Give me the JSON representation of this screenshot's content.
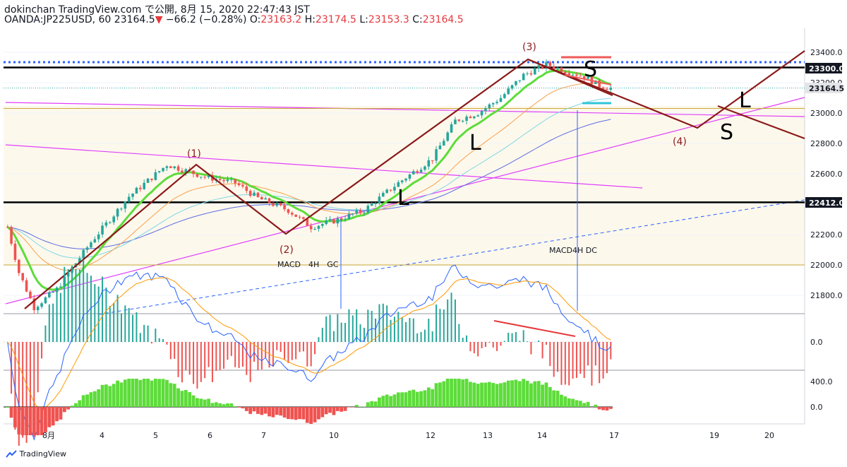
{
  "header": {
    "line1": "dokinchan TradingView.com で公開, 8月 15, 2020 22:47:43 JST",
    "symbol": "OANDA:JP225USD, 60",
    "last": "23164.5",
    "arrow": "▼",
    "change": "−66.2 (−0.28%)",
    "o_label": "O:",
    "o": "23163.2",
    "h_label": "H:",
    "h": "23174.5",
    "l_label": "L:",
    "l": "23153.3",
    "c_label": "C:",
    "c": "23164.5"
  },
  "footer": {
    "brand": "TradingView"
  },
  "colors": {
    "bull": "#26a69a",
    "bear": "#ef5350",
    "wave": "#8b1a1a",
    "trend": "#e040fb",
    "ema_fast": "#5ddc3a",
    "ema_red": "#f05a5a",
    "ma_orange": "#f7a14d",
    "ma_cyan": "#7fd8e6",
    "ma_blue": "#5b6ee1",
    "macd": "#2962ff",
    "signal": "#ff9800"
  },
  "chart_data": {
    "type": "candlestick",
    "y_axis": {
      "ticks": [
        "23400.0",
        "23200.0",
        "23000.0",
        "22800.0",
        "22600.0",
        "22400.0",
        "22200.0",
        "22000.0",
        "21800.0"
      ],
      "range": [
        21700,
        23450
      ],
      "labeled_levels": [
        {
          "label": "23300.0",
          "value": 23300
        },
        {
          "label": "23164.5",
          "value": 23164.5
        },
        {
          "label": "22412.0",
          "value": 22412
        }
      ]
    },
    "x_axis": {
      "ticks": [
        "8月",
        "4",
        "5",
        "6",
        "7",
        "10",
        "12",
        "13",
        "14",
        "17",
        "19",
        "20"
      ]
    },
    "horizontal_lines": [
      23300,
      22412,
      23335,
      23030,
      22000
    ],
    "wave_labels": [
      "(1)",
      "(2)",
      "(3)",
      "(4)"
    ],
    "letters": [
      "L",
      "L",
      "L",
      "S",
      "S",
      "L"
    ],
    "annotations": [
      "MACD　4H　GC",
      "MACD4H DC"
    ],
    "macd_panel": {
      "ticks": [
        "0.0"
      ]
    },
    "histogram_panel": {
      "ticks": [
        "400.0",
        "0.0"
      ]
    }
  }
}
